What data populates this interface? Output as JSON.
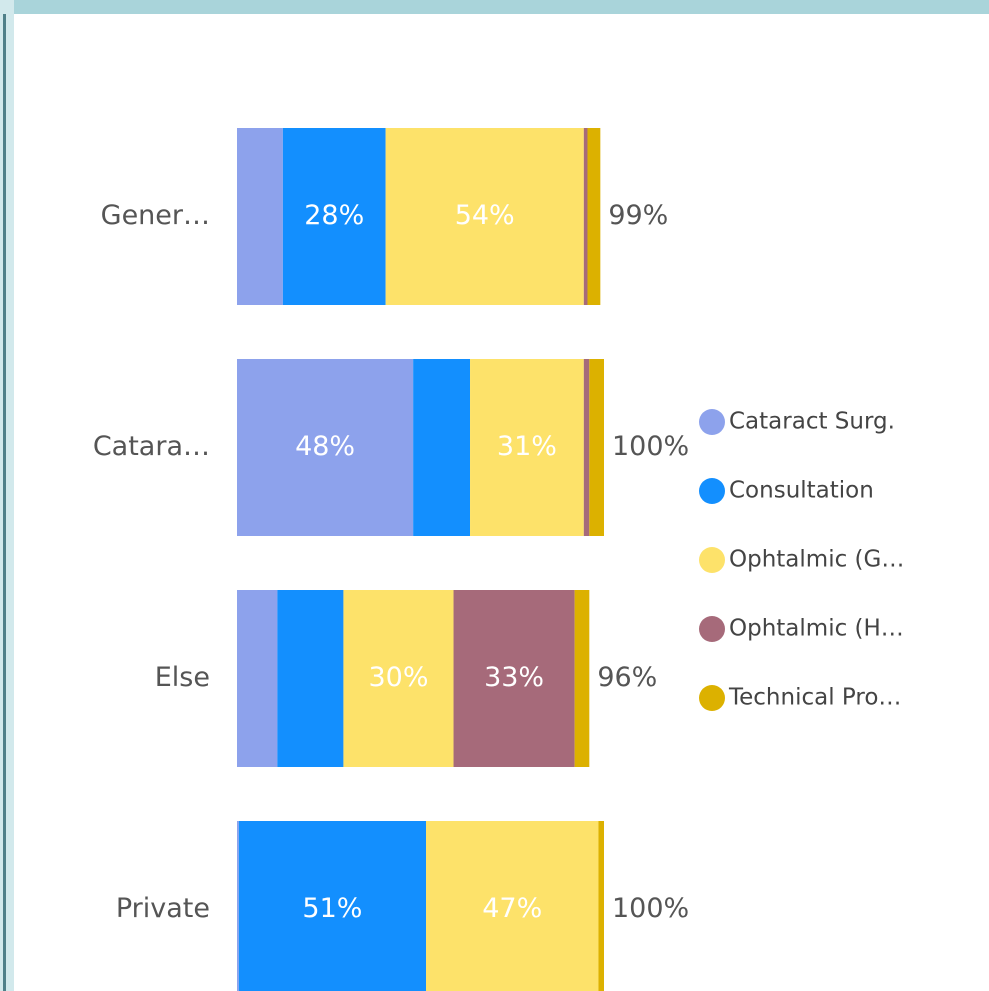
{
  "chart_data": {
    "type": "stacked_bar_horizontal",
    "categories": [
      "Gener…",
      "Catara…",
      "Else",
      "Private"
    ],
    "xlim": [
      0,
      100
    ],
    "series": [
      {
        "name": "Cataract Surg.",
        "color": "#8da2ec",
        "values": [
          12.5,
          48,
          11,
          0.5
        ],
        "value_labels": [
          null,
          "48%",
          null,
          null
        ]
      },
      {
        "name": "Consultation",
        "color": "#138ffe",
        "values": [
          28,
          15.5,
          18,
          51
        ],
        "value_labels": [
          "28%",
          null,
          null,
          "51%"
        ]
      },
      {
        "name": "Ophtalmic (G…",
        "color": "#fde26a",
        "values": [
          54,
          31,
          30,
          47
        ],
        "value_labels": [
          "54%",
          "31%",
          "30%",
          "47%"
        ]
      },
      {
        "name": "Ophtalmic (H…",
        "color": "#a66a7a",
        "values": [
          1,
          1.5,
          33,
          0
        ],
        "value_labels": [
          null,
          null,
          "33%",
          null
        ]
      },
      {
        "name": "Technical Pro…",
        "color": "#dcb100",
        "values": [
          3.5,
          4,
          4,
          1.5
        ],
        "value_labels": [
          null,
          null,
          null,
          null
        ]
      }
    ],
    "totals": [
      99,
      100,
      96,
      100
    ],
    "total_labels": [
      "99%",
      "100%",
      "96%",
      "100%"
    ],
    "legend": "right"
  }
}
